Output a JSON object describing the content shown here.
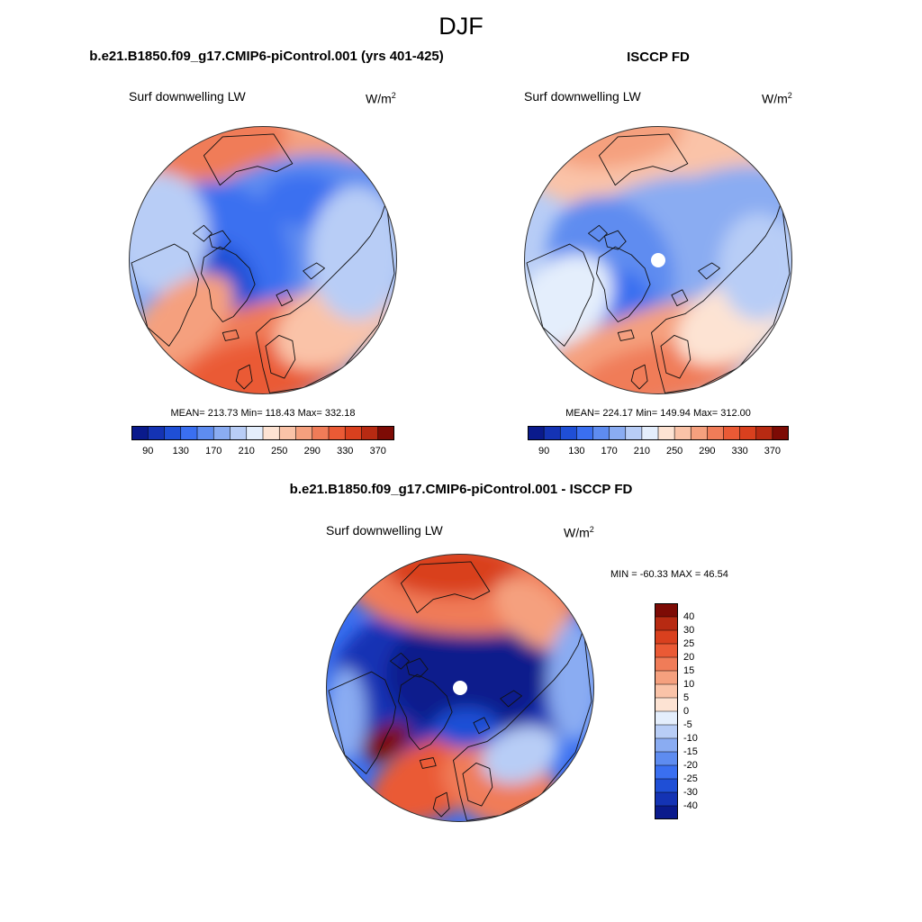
{
  "figure": {
    "title": "DJF"
  },
  "panels": [
    {
      "id": "model",
      "title": "b.e21.B1850.f09_g17.CMIP6-piControl.001 (yrs 401-425)",
      "variable": "Surf downwelling LW",
      "units_base": "W/m",
      "units_exp": "2",
      "stats": "MEAN= 213.73  Min= 118.43  Max= 332.18",
      "pole_hole": false
    },
    {
      "id": "obs",
      "title": "ISCCP FD",
      "variable": "Surf downwelling LW",
      "units_base": "W/m",
      "units_exp": "2",
      "stats": "MEAN= 224.17  Min= 149.94  Max= 312.00",
      "pole_hole": true
    },
    {
      "id": "diff",
      "title": "b.e21.B1850.f09_g17.CMIP6-piControl.001 - ISCCP FD",
      "variable": "Surf downwelling LW",
      "units_base": "W/m",
      "units_exp": "2",
      "stats": "MIN = -60.33 MAX =  46.54",
      "pole_hole": true
    }
  ],
  "colorbars": {
    "absolute": {
      "colors": [
        "#0a1a8c",
        "#1433b4",
        "#1f4fd6",
        "#3a6ff0",
        "#5e8cf0",
        "#8aacf2",
        "#b8cdf6",
        "#e4eefc",
        "#fde3d3",
        "#fac3a8",
        "#f5a07e",
        "#f07c58",
        "#ea5a35",
        "#d9401e",
        "#b72a12",
        "#7d0b05"
      ],
      "tick_labels": [
        "90",
        "130",
        "170",
        "210",
        "250",
        "290",
        "330",
        "370"
      ]
    },
    "difference": {
      "colors": [
        "#7d0b05",
        "#b72a12",
        "#d9401e",
        "#ea5a35",
        "#f07c58",
        "#f5a07e",
        "#fac3a8",
        "#fde3d3",
        "#e4eefc",
        "#b8cdf6",
        "#8aacf2",
        "#5e8cf0",
        "#3a6ff0",
        "#1f4fd6",
        "#1433b4",
        "#0a1a8c"
      ],
      "tick_labels": [
        "40",
        "30",
        "25",
        "20",
        "15",
        "10",
        "5",
        "0",
        "-5",
        "-10",
        "-15",
        "-20",
        "-25",
        "-30",
        "-40"
      ]
    }
  }
}
